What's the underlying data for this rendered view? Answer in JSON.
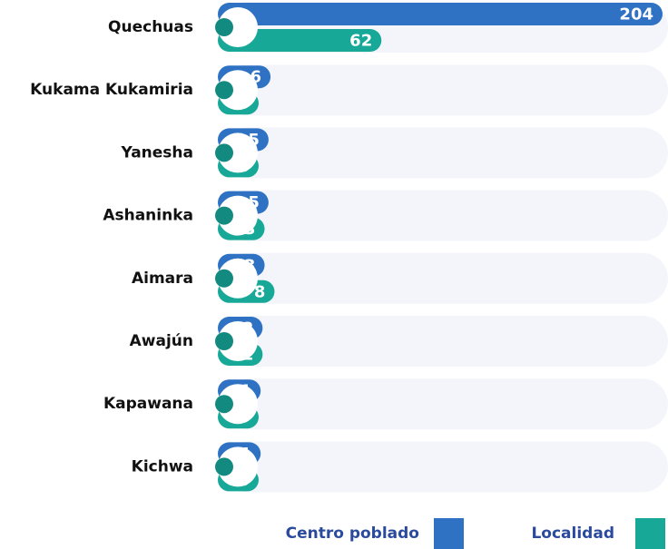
{
  "chart_data": {
    "type": "bar",
    "orientation": "horizontal",
    "categories": [
      "Quechuas",
      "Kukama Kukamiria",
      "Yanesha",
      "Ashaninka",
      "Aimara",
      "Awajún",
      "Kapawana",
      "Kichwa"
    ],
    "series": [
      {
        "name": "Centro poblado",
        "color": "#2f72c4",
        "values": [
          204,
          6,
          5,
          5,
          3,
          2,
          1,
          1
        ]
      },
      {
        "name": "Localidad",
        "color": "#17a898",
        "values": [
          62,
          0,
          0,
          3,
          8,
          2,
          0,
          0
        ]
      }
    ]
  }
}
